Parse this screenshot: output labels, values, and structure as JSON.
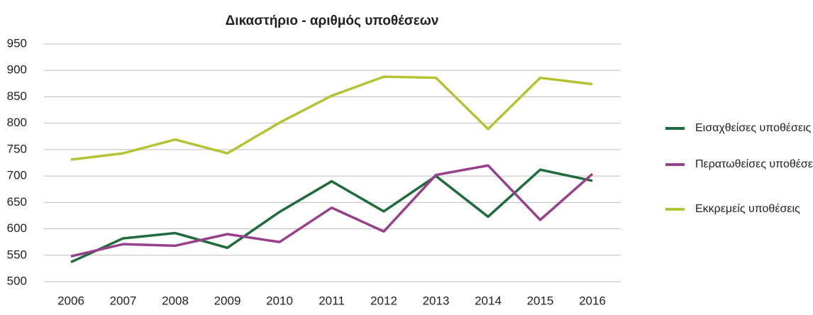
{
  "chart_data": {
    "type": "line",
    "title": "Δικαστήριο - αριθμός υποθέσεων",
    "categories": [
      "2006",
      "2007",
      "2008",
      "2009",
      "2010",
      "2011",
      "2012",
      "2013",
      "2014",
      "2015",
      "2016"
    ],
    "series": [
      {
        "name": "Εισαχθείσες υποθέσεις",
        "color": "#1f6b3d",
        "values": [
          537,
          582,
          592,
          564,
          632,
          690,
          633,
          700,
          623,
          712,
          691
        ]
      },
      {
        "name": "Περατωθείσες υποθέσεις",
        "color": "#97418a",
        "values": [
          548,
          571,
          568,
          590,
          575,
          640,
          595,
          702,
          720,
          617,
          704
        ]
      },
      {
        "name": "Εκκρεμείς υποθέσεις",
        "color": "#b4c234",
        "values": [
          731,
          743,
          769,
          743,
          801,
          852,
          888,
          886,
          789,
          886,
          874
        ]
      }
    ],
    "ylim": [
      500,
      950
    ],
    "yticks": [
      500,
      550,
      600,
      650,
      700,
      750,
      800,
      850,
      900,
      950
    ],
    "grid": true,
    "legend": "right"
  }
}
